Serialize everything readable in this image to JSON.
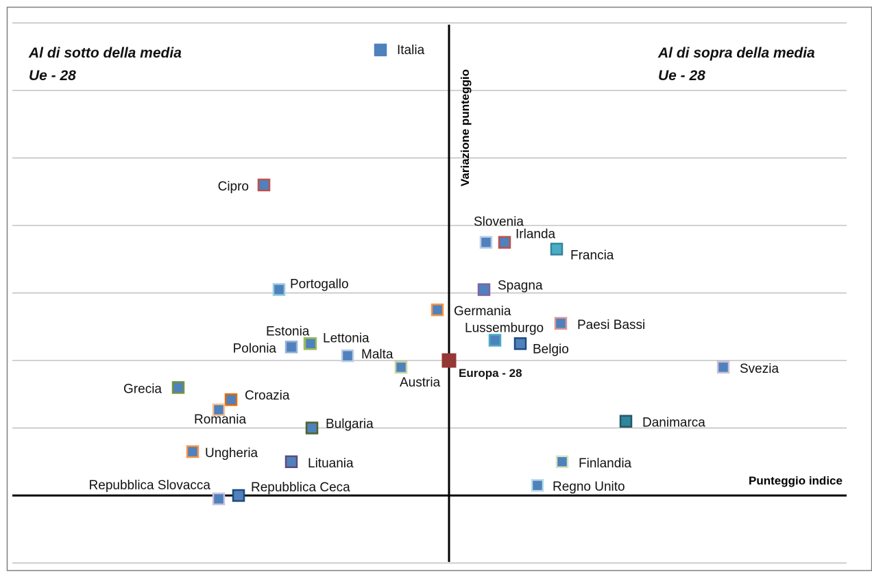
{
  "chart_data": {
    "type": "scatter",
    "xlabel": "Punteggio indice",
    "ylabel": "Variazione punteggio",
    "quadrant_left": [
      "Al di sotto della media",
      "Ue - 28"
    ],
    "quadrant_right": [
      "Al di sopra della media",
      "Ue - 28"
    ],
    "reference": {
      "name": "Europa - 28",
      "x": 0,
      "y": 2.0,
      "color": "#953735"
    },
    "grid": true,
    "gridlines_y": [
      -1,
      0,
      1,
      2,
      3,
      4,
      5,
      6,
      7
    ],
    "points": [
      {
        "name": "Italia",
        "x": -1.0,
        "y": 6.6,
        "fill": "#4f81bd",
        "border": "#4f81bd"
      },
      {
        "name": "Cipro",
        "x": -2.7,
        "y": 4.6,
        "fill": "#4f81bd",
        "border": "#c0504d"
      },
      {
        "name": "Slovenia",
        "x": 0.54,
        "y": 3.75,
        "fill": "#4f81bd",
        "border": "#b9cde5"
      },
      {
        "name": "Irlanda",
        "x": 0.81,
        "y": 3.75,
        "fill": "#4f81bd",
        "border": "#c0504d"
      },
      {
        "name": "Francia",
        "x": 1.57,
        "y": 3.65,
        "fill": "#4bacc6",
        "border": "#31859c"
      },
      {
        "name": "Portogallo",
        "x": -2.48,
        "y": 3.05,
        "fill": "#4f81bd",
        "border": "#93cddd"
      },
      {
        "name": "Spagna",
        "x": 0.51,
        "y": 3.05,
        "fill": "#4f81bd",
        "border": "#8064a2"
      },
      {
        "name": "Germania",
        "x": -0.17,
        "y": 2.75,
        "fill": "#4f81bd",
        "border": "#f79646"
      },
      {
        "name": "Paesi Bassi",
        "x": 1.63,
        "y": 2.55,
        "fill": "#4f81bd",
        "border": "#d99694"
      },
      {
        "name": "Lussemburgo",
        "x": 0.67,
        "y": 2.3,
        "fill": "#4f81bd",
        "border": "#4bacc6"
      },
      {
        "name": "Belgio",
        "x": 1.04,
        "y": 2.25,
        "fill": "#4f81bd",
        "border": "#1f497d"
      },
      {
        "name": "Estonia",
        "x": -2.03,
        "y": 2.25,
        "fill": "#4f81bd",
        "border": "#9bbb59"
      },
      {
        "name": "Lettonia",
        "x": -2.02,
        "y": 2.25,
        "fill": "#4f81bd",
        "border": "#9bbb59"
      },
      {
        "name": "Polonia",
        "x": -2.3,
        "y": 2.2,
        "fill": "#4f81bd",
        "border": "#95b3d7"
      },
      {
        "name": "Malta",
        "x": -1.48,
        "y": 2.07,
        "fill": "#4f81bd",
        "border": "#b9cde5"
      },
      {
        "name": "Austria",
        "x": -0.7,
        "y": 1.9,
        "fill": "#4f81bd",
        "border": "#c3d69b"
      },
      {
        "name": "Svezia",
        "x": 4.0,
        "y": 1.9,
        "fill": "#4f81bd",
        "border": "#ccc1da"
      },
      {
        "name": "Grecia",
        "x": -3.95,
        "y": 1.6,
        "fill": "#4f81bd",
        "border": "#77933c"
      },
      {
        "name": "Croazia",
        "x": -3.18,
        "y": 1.42,
        "fill": "#4f81bd",
        "border": "#e46c0a"
      },
      {
        "name": "Romania",
        "x": -3.36,
        "y": 1.27,
        "fill": "#4f81bd",
        "border": "#fac090"
      },
      {
        "name": "Bulgaria",
        "x": -2.0,
        "y": 1.0,
        "fill": "#4f81bd",
        "border": "#4f6228"
      },
      {
        "name": "Danimarca",
        "x": 2.58,
        "y": 1.1,
        "fill": "#31859c",
        "border": "#215968"
      },
      {
        "name": "Ungheria",
        "x": -3.74,
        "y": 0.65,
        "fill": "#4f81bd",
        "border": "#f79646"
      },
      {
        "name": "Lituania",
        "x": -2.3,
        "y": 0.5,
        "fill": "#4f81bd",
        "border": "#604a7b"
      },
      {
        "name": "Finlandia",
        "x": 1.65,
        "y": 0.5,
        "fill": "#4f81bd",
        "border": "#d7e4bd"
      },
      {
        "name": "Regno Unito",
        "x": 1.29,
        "y": 0.15,
        "fill": "#4f81bd",
        "border": "#b7dee8"
      },
      {
        "name": "Repubblica Slovacca",
        "x": -3.36,
        "y": -0.05,
        "fill": "#4f81bd",
        "border": "#ccc1da"
      },
      {
        "name": "Repubblica Ceca",
        "x": -3.07,
        "y": 0.0,
        "fill": "#4f81bd",
        "border": "#1f497d"
      }
    ]
  }
}
